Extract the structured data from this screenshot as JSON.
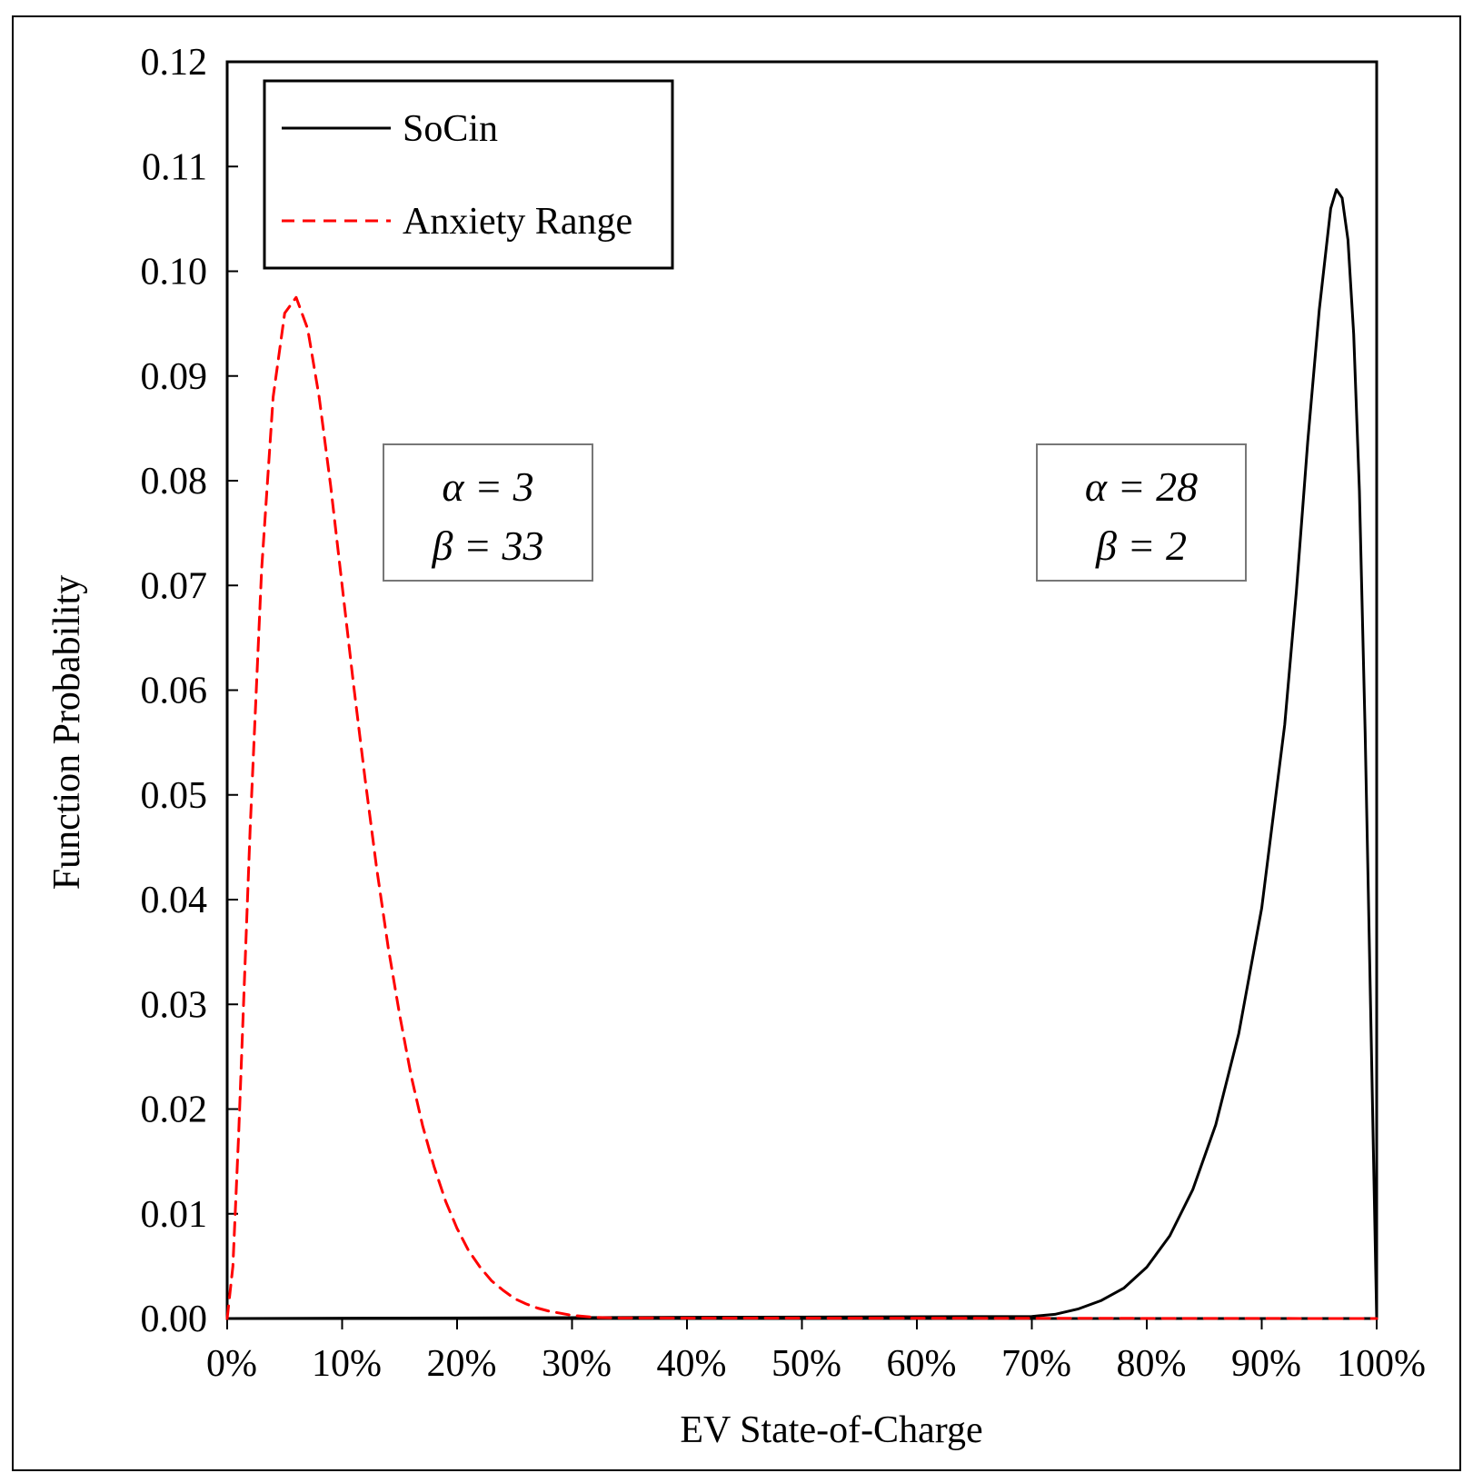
{
  "chart_data": {
    "type": "line",
    "title": "",
    "xlabel": "EV State-of-Charge",
    "ylabel": "Function Probability",
    "xlim": [
      0,
      100
    ],
    "ylim": [
      0,
      0.12
    ],
    "x_ticks": [
      "0%",
      "10%",
      "20%",
      "30%",
      "40%",
      "50%",
      "60%",
      "70%",
      "80%",
      "90%",
      "100%"
    ],
    "y_ticks": [
      "0.00",
      "0.01",
      "0.02",
      "0.03",
      "0.04",
      "0.05",
      "0.06",
      "0.07",
      "0.08",
      "0.09",
      "0.10",
      "0.11",
      "0.12"
    ],
    "legend_position": "top-left",
    "series": [
      {
        "name": "SoCin",
        "color": "#000000",
        "style": "solid",
        "x": [
          0,
          70,
          72,
          74,
          76,
          78,
          80,
          82,
          84,
          86,
          88,
          90,
          92,
          93,
          94,
          95,
          96,
          96.5,
          97,
          97.5,
          98,
          98.5,
          99,
          99.5,
          100
        ],
        "values": [
          0,
          0.0002,
          0.0004,
          0.0009,
          0.0017,
          0.0029,
          0.0049,
          0.0079,
          0.0123,
          0.0185,
          0.0272,
          0.0392,
          0.0567,
          0.0693,
          0.0837,
          0.0963,
          0.106,
          0.1078,
          0.107,
          0.103,
          0.094,
          0.079,
          0.056,
          0.028,
          0
        ]
      },
      {
        "name": "Anxiety Range",
        "color": "#ff0000",
        "style": "dashed",
        "x": [
          0,
          0.5,
          1,
          2,
          3,
          4,
          5,
          6,
          7,
          8,
          9,
          10,
          11,
          12,
          13,
          14,
          15,
          16,
          17,
          18,
          19,
          20,
          21,
          22,
          23,
          24,
          25,
          26,
          27,
          28,
          29,
          30,
          32,
          34,
          100
        ],
        "values": [
          0,
          0.005,
          0.0175,
          0.0468,
          0.0715,
          0.088,
          0.096,
          0.0975,
          0.0945,
          0.088,
          0.0795,
          0.07,
          0.0605,
          0.0515,
          0.043,
          0.0355,
          0.029,
          0.0232,
          0.0184,
          0.0145,
          0.0112,
          0.0086,
          0.0065,
          0.0049,
          0.0036,
          0.0027,
          0.0019,
          0.0014,
          0.001,
          0.0007,
          0.0005,
          0.0003,
          0.0001,
          5e-05,
          0
        ]
      }
    ],
    "annotations": [
      {
        "name": "anxiety-params",
        "lines": [
          "α = 3",
          "β = 33"
        ]
      },
      {
        "name": "socin-params",
        "lines": [
          "α = 28",
          "β = 2"
        ]
      }
    ]
  }
}
